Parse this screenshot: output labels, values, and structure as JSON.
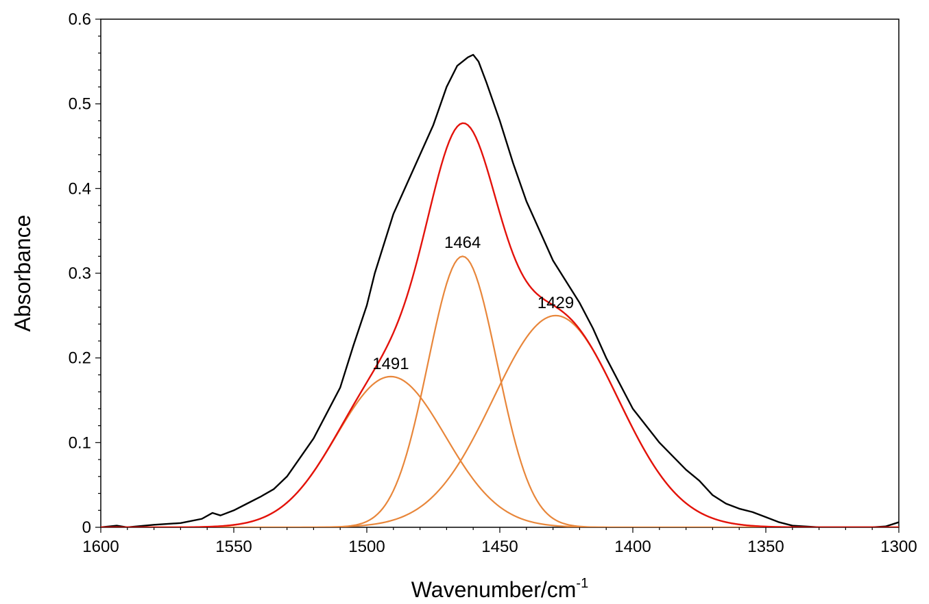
{
  "chart_data": {
    "type": "line",
    "xlabel": "Wavenumber/cm",
    "xlabel_superscript": "-1",
    "ylabel": "Absorbance",
    "xlim": [
      1600,
      1300
    ],
    "ylim": [
      0,
      0.6
    ],
    "x_ticks": [
      "1600",
      "1550",
      "1500",
      "1450",
      "1400",
      "1350",
      "1300"
    ],
    "y_ticks": [
      "0",
      "0.1",
      "0.2",
      "0.3",
      "0.4",
      "0.5",
      "0.6"
    ],
    "grid": false,
    "legend": "none",
    "series": [
      {
        "role": "measured",
        "color": "#000000",
        "x": [
          1600,
          1594,
          1590,
          1580,
          1570,
          1562,
          1558,
          1555,
          1550,
          1545,
          1540,
          1535,
          1530,
          1520,
          1510,
          1505,
          1500,
          1497,
          1494,
          1490,
          1485,
          1480,
          1475,
          1470,
          1466,
          1462,
          1460,
          1458,
          1455,
          1450,
          1445,
          1440,
          1435,
          1430,
          1425,
          1420,
          1415,
          1410,
          1400,
          1390,
          1380,
          1375,
          1370,
          1365,
          1360,
          1355,
          1350,
          1345,
          1340,
          1330,
          1320,
          1310,
          1305,
          1300
        ],
        "y": [
          0.0,
          0.002,
          0.0,
          0.003,
          0.005,
          0.01,
          0.017,
          0.014,
          0.02,
          0.028,
          0.036,
          0.045,
          0.06,
          0.105,
          0.165,
          0.215,
          0.262,
          0.3,
          0.33,
          0.37,
          0.405,
          0.44,
          0.475,
          0.52,
          0.545,
          0.555,
          0.558,
          0.55,
          0.525,
          0.48,
          0.43,
          0.385,
          0.35,
          0.315,
          0.29,
          0.265,
          0.235,
          0.2,
          0.14,
          0.1,
          0.068,
          0.055,
          0.038,
          0.028,
          0.022,
          0.018,
          0.012,
          0.006,
          0.002,
          0.0,
          0.0,
          0.0,
          0.001,
          0.006
        ]
      },
      {
        "role": "fit-sum",
        "color": "#e3120b",
        "peaks": "sum"
      },
      {
        "role": "component",
        "name": "1491",
        "color": "#e8863a",
        "center": 1491,
        "amplitude": 0.178,
        "sigma": 20.5
      },
      {
        "role": "component",
        "name": "1464",
        "color": "#e8863a",
        "center": 1464,
        "amplitude": 0.32,
        "sigma": 13
      },
      {
        "role": "component",
        "name": "1429",
        "color": "#e8863a",
        "center": 1429,
        "amplitude": 0.25,
        "sigma": 23.5
      }
    ],
    "annotations": [
      {
        "text": "1491",
        "x": 1491,
        "y": 0.182
      },
      {
        "text": "1464",
        "x": 1464,
        "y": 0.325
      },
      {
        "text": "1429",
        "x": 1429,
        "y": 0.254
      }
    ]
  }
}
